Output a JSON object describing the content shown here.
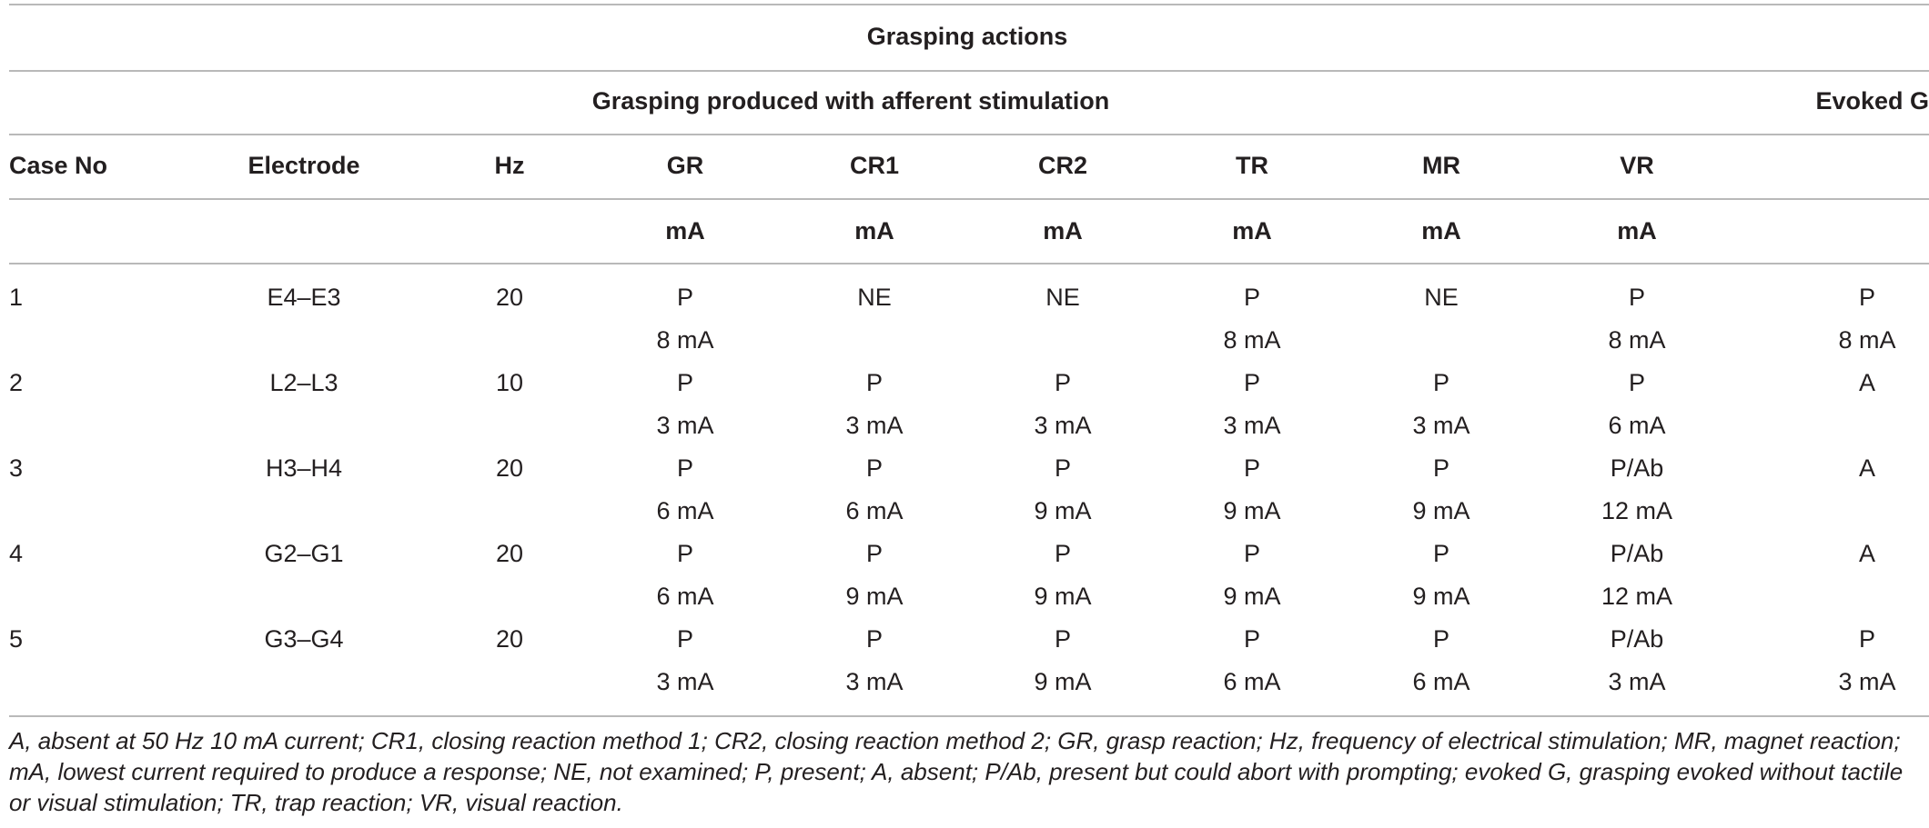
{
  "table": {
    "title": "Grasping actions",
    "group_afferent": "Grasping produced with afferent stimulation",
    "group_evoked": "Evoked G",
    "headers": [
      "Case No",
      "Electrode",
      "Hz",
      "GR",
      "CR1",
      "CR2",
      "TR",
      "MR",
      "VR"
    ],
    "units": [
      "mA",
      "mA",
      "mA",
      "mA",
      "mA",
      "mA"
    ],
    "rows": [
      {
        "case": "1",
        "electrode": "E4–E3",
        "hz": "20",
        "top": [
          "P",
          "NE",
          "NE",
          "P",
          "NE",
          "P",
          "P"
        ],
        "bottom": [
          "8 mA",
          "",
          "",
          "8 mA",
          "",
          "8 mA",
          "8 mA"
        ]
      },
      {
        "case": "2",
        "electrode": "L2–L3",
        "hz": "10",
        "top": [
          "P",
          "P",
          "P",
          "P",
          "P",
          "P",
          "A"
        ],
        "bottom": [
          "3 mA",
          "3 mA",
          "3 mA",
          "3 mA",
          "3 mA",
          "6 mA",
          ""
        ]
      },
      {
        "case": "3",
        "electrode": "H3–H4",
        "hz": "20",
        "top": [
          "P",
          "P",
          "P",
          "P",
          "P",
          "P/Ab",
          "A"
        ],
        "bottom": [
          "6 mA",
          "6 mA",
          "9 mA",
          "9 mA",
          "9 mA",
          "12 mA",
          ""
        ]
      },
      {
        "case": "4",
        "electrode": "G2–G1",
        "hz": "20",
        "top": [
          "P",
          "P",
          "P",
          "P",
          "P",
          "P/Ab",
          "A"
        ],
        "bottom": [
          "6 mA",
          "9 mA",
          "9 mA",
          "9 mA",
          "9 mA",
          "12 mA",
          ""
        ]
      },
      {
        "case": "5",
        "electrode": "G3–G4",
        "hz": "20",
        "top": [
          "P",
          "P",
          "P",
          "P",
          "P",
          "P/Ab",
          "P"
        ],
        "bottom": [
          "3 mA",
          "3 mA",
          "9 mA",
          "6 mA",
          "6 mA",
          "3 mA",
          "3 mA"
        ]
      }
    ],
    "footnote": "A, absent at 50 Hz 10 mA current; CR1, closing reaction method 1; CR2, closing reaction method 2; GR, grasp reaction; Hz, frequency of electrical stimulation; MR, magnet reaction; mA, lowest current required to produce a response; NE, not examined; P, present; A, absent; P/Ab, present but could abort with prompting; evoked G, grasping evoked without tactile or visual stimulation; TR, trap reaction; VR, visual reaction."
  }
}
